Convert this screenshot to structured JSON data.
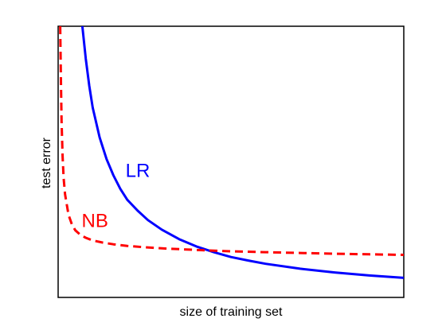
{
  "chart_data": {
    "type": "line",
    "title": "",
    "xlabel": "size of training set",
    "ylabel": "test error",
    "x_ticks_shown": false,
    "y_ticks_shown": false,
    "grid": false,
    "legend": "none (series labeled inline next to curves)",
    "xlim": [
      0,
      100
    ],
    "ylim": [
      0,
      100
    ],
    "series": [
      {
        "name": "LR",
        "color": "#0000ff",
        "line_style": "solid",
        "points": [
          {
            "x": 7,
            "y": 100
          },
          {
            "x": 8,
            "y": 88
          },
          {
            "x": 9,
            "y": 78
          },
          {
            "x": 10,
            "y": 70
          },
          {
            "x": 12,
            "y": 59
          },
          {
            "x": 14,
            "y": 51
          },
          {
            "x": 16,
            "y": 45
          },
          {
            "x": 18,
            "y": 40
          },
          {
            "x": 20,
            "y": 36
          },
          {
            "x": 23,
            "y": 32
          },
          {
            "x": 26,
            "y": 28.5
          },
          {
            "x": 30,
            "y": 25
          },
          {
            "x": 35,
            "y": 21.5
          },
          {
            "x": 40,
            "y": 18.8
          },
          {
            "x": 45,
            "y": 16.7
          },
          {
            "x": 50,
            "y": 14.9
          },
          {
            "x": 55,
            "y": 13.6
          },
          {
            "x": 60,
            "y": 12.4
          },
          {
            "x": 70,
            "y": 10.6
          },
          {
            "x": 80,
            "y": 9.2
          },
          {
            "x": 90,
            "y": 8.1
          },
          {
            "x": 100,
            "y": 7.2
          }
        ]
      },
      {
        "name": "NB",
        "color": "#ff0000",
        "line_style": "dashed",
        "points": [
          {
            "x": 0.6,
            "y": 100
          },
          {
            "x": 0.8,
            "y": 80
          },
          {
            "x": 1,
            "y": 65
          },
          {
            "x": 1.3,
            "y": 52
          },
          {
            "x": 1.6,
            "y": 44
          },
          {
            "x": 2,
            "y": 38
          },
          {
            "x": 3,
            "y": 30.5
          },
          {
            "x": 4,
            "y": 26.8
          },
          {
            "x": 5,
            "y": 24.7
          },
          {
            "x": 6.5,
            "y": 23
          },
          {
            "x": 8,
            "y": 22
          },
          {
            "x": 10,
            "y": 21
          },
          {
            "x": 13,
            "y": 20.2
          },
          {
            "x": 16,
            "y": 19.6
          },
          {
            "x": 20,
            "y": 19
          },
          {
            "x": 25,
            "y": 18.5
          },
          {
            "x": 30,
            "y": 18.1
          },
          {
            "x": 40,
            "y": 17.5
          },
          {
            "x": 50,
            "y": 17
          },
          {
            "x": 60,
            "y": 16.7
          },
          {
            "x": 70,
            "y": 16.4
          },
          {
            "x": 80,
            "y": 16.1
          },
          {
            "x": 90,
            "y": 15.9
          },
          {
            "x": 100,
            "y": 15.7
          }
        ]
      }
    ],
    "annotations": [
      {
        "text": "LR",
        "series": "LR",
        "x": 19.5,
        "y": 44.5
      },
      {
        "text": "NB",
        "series": "NB",
        "x": 6.8,
        "y": 26
      }
    ]
  }
}
